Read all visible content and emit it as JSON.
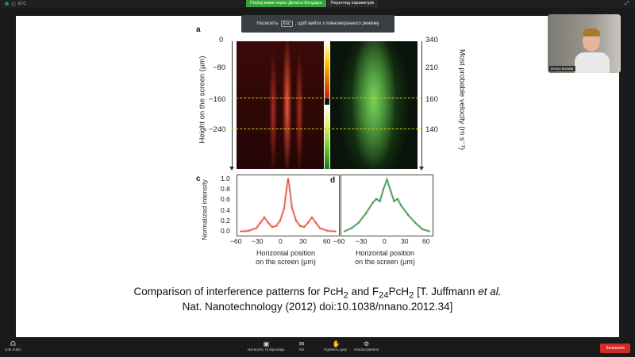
{
  "topbar": {
    "indicator_text": "ETC",
    "share_text": "Перед вами екран Дениса Бондара",
    "share_menu": "Перегляд параметрів"
  },
  "esc_hint": {
    "before": "Натисніть",
    "key": "Esc",
    "after": ", щоб вийти з повноекранного режиму"
  },
  "video": {
    "name": "Denys Bondar"
  },
  "figure": {
    "panel_a": "a",
    "panel_c": "c",
    "panel_d": "d",
    "left_axis_label": "Height on the screen (µm)",
    "right_axis_label": "Most probable velocity (m s⁻¹)",
    "left_ticks": [
      "0",
      "−80",
      "−160",
      "−240"
    ],
    "right_ticks": [
      "340",
      "210",
      "160",
      "140"
    ],
    "plot_c_yticks": [
      "1.0",
      "0.8",
      "0.6",
      "0.4",
      "0.2",
      "0.0"
    ],
    "ylabel": "Normalized intensity",
    "xticks_c": [
      "−60",
      "−30",
      "0",
      "30",
      "60"
    ],
    "xticks_d": [
      "−60",
      "−30",
      "0",
      "30",
      "60"
    ],
    "xlabel_c_line1": "Horizontal position",
    "xlabel_c_line2": "on the screen (µm)",
    "xlabel_d_line1": "Horizontal position",
    "xlabel_d_line2": "on the screen (µm)"
  },
  "chart_data": [
    {
      "type": "line",
      "panel": "c",
      "xlabel": "Horizontal position on the screen (µm)",
      "ylabel": "Normalized intensity",
      "xlim": [
        -60,
        60
      ],
      "ylim": [
        0,
        1.0
      ],
      "x": [
        -60,
        -50,
        -40,
        -35,
        -30,
        -25,
        -20,
        -15,
        -10,
        -5,
        -2,
        0,
        2,
        5,
        10,
        15,
        20,
        25,
        30,
        35,
        40,
        50,
        60
      ],
      "series": [
        {
          "values": [
            0.02,
            0.03,
            0.08,
            0.18,
            0.28,
            0.18,
            0.1,
            0.12,
            0.22,
            0.45,
            0.8,
            1.0,
            0.8,
            0.45,
            0.22,
            0.12,
            0.1,
            0.18,
            0.28,
            0.18,
            0.08,
            0.03,
            0.02
          ]
        }
      ],
      "color": "#e0452f"
    },
    {
      "type": "line",
      "panel": "d",
      "xlabel": "Horizontal position on the screen (µm)",
      "ylabel": "Normalized intensity",
      "xlim": [
        -60,
        60
      ],
      "ylim": [
        0,
        1.0
      ],
      "x": [
        -60,
        -50,
        -40,
        -30,
        -20,
        -15,
        -10,
        -5,
        0,
        5,
        10,
        15,
        20,
        30,
        40,
        50,
        60
      ],
      "series": [
        {
          "values": [
            0.02,
            0.08,
            0.18,
            0.35,
            0.55,
            0.62,
            0.58,
            0.8,
            0.98,
            0.78,
            0.58,
            0.62,
            0.5,
            0.32,
            0.18,
            0.06,
            0.02
          ]
        }
      ],
      "color": "#2f8a35"
    }
  ],
  "caption": {
    "line1_a": "Comparison of interference patterns for PcH",
    "line1_sub1": "2",
    "line1_b": " and F",
    "line1_sub2": "24",
    "line1_c": "PcH",
    "line1_sub3": "2",
    "line1_d": " [T. Juffmann ",
    "line1_etal": "et al.",
    "line2": "Nat. Nanotechnology (2012) doi:10.1038/nnano.2012.34]"
  },
  "controls": {
    "join_audio": "Join Audio",
    "share": "Натисніть та відповідь",
    "chat": "Чат",
    "chat_badge": "1",
    "reactions": "Підніміть руку",
    "settings": "Налаштування",
    "end": "Залишити"
  },
  "colors": {
    "accent_red": "#d52b25",
    "share_green": "#37a33a"
  }
}
